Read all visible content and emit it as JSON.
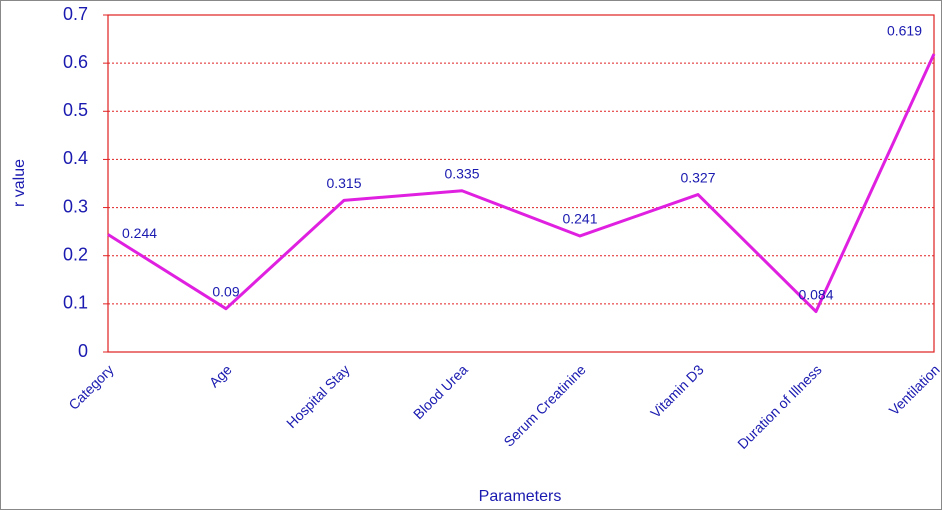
{
  "chart_data": {
    "type": "line",
    "x_label": "Parameters",
    "y_label": "r value",
    "categories": [
      "Category",
      "Age",
      "Hospital Stay",
      "Blood Urea",
      "Serum Creatinine",
      "Vitamin D3",
      "Duration of Illness",
      "Ventilation"
    ],
    "values": [
      0.244,
      0.09,
      0.315,
      0.335,
      0.241,
      0.327,
      0.084,
      0.619
    ],
    "color": "#e020e0",
    "ylim": [
      0,
      0.7
    ],
    "yticks": [
      0,
      0.1,
      0.2,
      0.3,
      0.4,
      0.5,
      0.6,
      0.7
    ],
    "grid": true
  }
}
